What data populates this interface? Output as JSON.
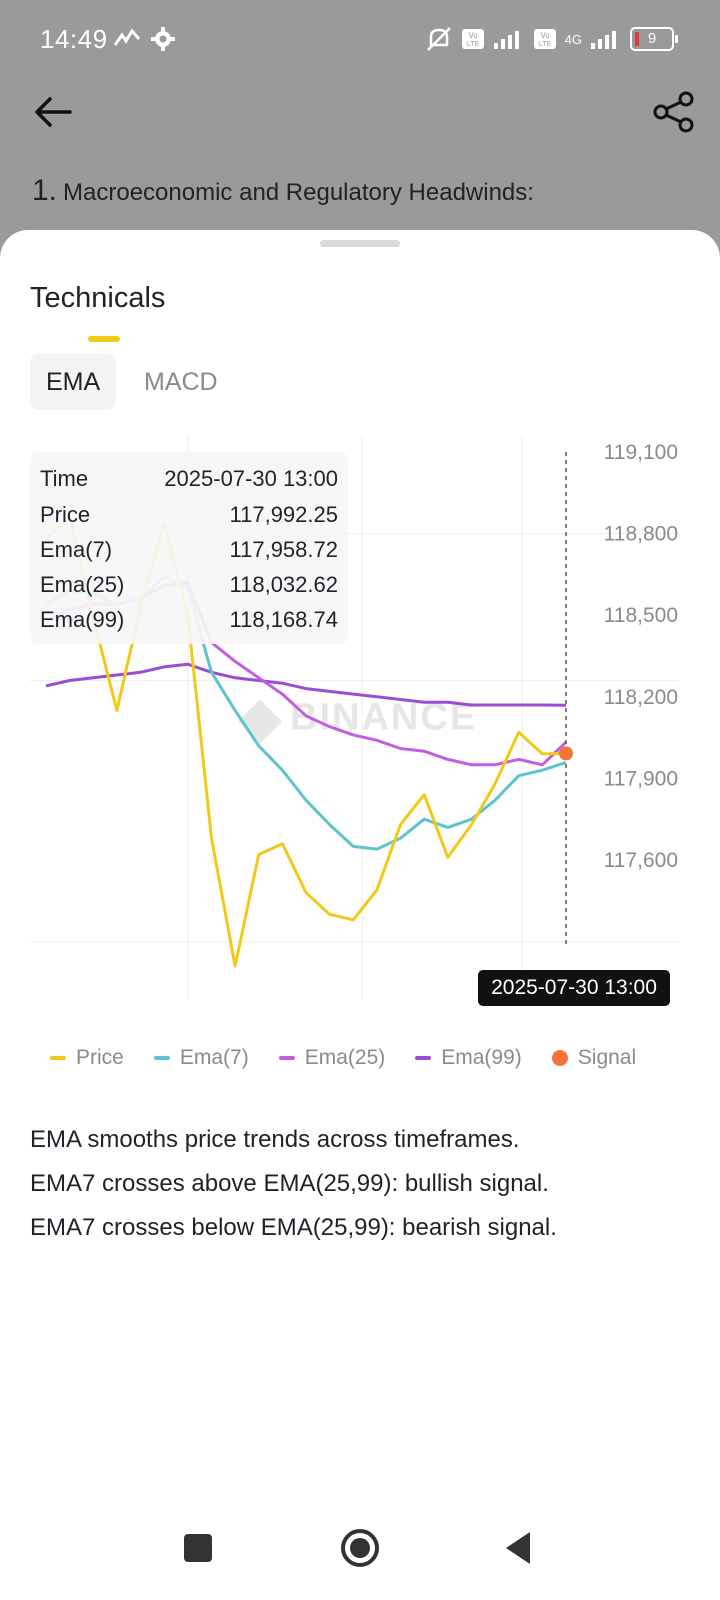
{
  "status_bar": {
    "time": "14:49",
    "battery": "9",
    "network": "4G",
    "left_icons": [
      "gesture-icon",
      "gear-icon"
    ],
    "right_icons": [
      "mute-icon",
      "volte-icon",
      "signal-icon",
      "volte-icon",
      "signal-icon",
      "battery-icon"
    ]
  },
  "header": {
    "back_icon": "arrow-left-icon",
    "share_icon": "share-icon"
  },
  "article": {
    "number": "1.",
    "heading": "Macroeconomic and Regulatory Headwinds:"
  },
  "sheet": {
    "title": "Technicals",
    "tabs": [
      {
        "label": "EMA",
        "active": true
      },
      {
        "label": "MACD",
        "active": false
      }
    ]
  },
  "tooltip": {
    "rows": [
      {
        "label": "Time",
        "value": "2025-07-30 13:00"
      },
      {
        "label": "Price",
        "value": "117,992.25"
      },
      {
        "label": "Ema(7)",
        "value": "117,958.72"
      },
      {
        "label": "Ema(25)",
        "value": "118,032.62"
      },
      {
        "label": "Ema(99)",
        "value": "118,168.74"
      }
    ]
  },
  "chart_data": {
    "type": "line",
    "watermark": "BINANCE",
    "x_label": "2025-07-30 13:00",
    "y_ticks": [
      "119,100",
      "118,800",
      "118,500",
      "118,200",
      "117,900",
      "117,600"
    ],
    "y_tick_values": [
      119100,
      118800,
      118500,
      118200,
      117900,
      117600
    ],
    "ylim": [
      117300,
      119100
    ],
    "series": [
      {
        "name": "Price",
        "color": "#f0c919",
        "values": [
          118780,
          118860,
          118490,
          118150,
          118530,
          118840,
          118500,
          117680,
          117210,
          117620,
          117660,
          117480,
          117400,
          117380,
          117490,
          117730,
          117840,
          117610,
          117730,
          117880,
          118070,
          117990,
          117992
        ]
      },
      {
        "name": "Ema(7)",
        "color": "#5ec3ce",
        "values": [
          118540,
          118590,
          118580,
          118540,
          118560,
          118640,
          118600,
          118290,
          118150,
          118020,
          117930,
          117820,
          117730,
          117650,
          117640,
          117680,
          117750,
          117720,
          117750,
          117820,
          117910,
          117930,
          117959
        ]
      },
      {
        "name": "Ema(25)",
        "color": "#c45ee0",
        "values": [
          118480,
          118520,
          118540,
          118540,
          118560,
          118610,
          118620,
          118400,
          118330,
          118270,
          118210,
          118130,
          118090,
          118060,
          118040,
          118010,
          118000,
          117970,
          117950,
          117950,
          117970,
          117950,
          118033
        ]
      },
      {
        "name": "Ema(99)",
        "color": "#9b4dd6",
        "values": [
          118240,
          118260,
          118270,
          118280,
          118290,
          118310,
          118320,
          118290,
          118270,
          118260,
          118250,
          118230,
          118220,
          118210,
          118200,
          118190,
          118180,
          118180,
          118170,
          118170,
          118170,
          118170,
          118169
        ]
      }
    ],
    "signal": {
      "name": "Signal",
      "color": "#f4733b",
      "index": 22,
      "value": 117992
    }
  },
  "legend": [
    {
      "label": "Price",
      "color": "#f0c919",
      "kind": "line"
    },
    {
      "label": "Ema(7)",
      "color": "#5ec3ce",
      "kind": "line"
    },
    {
      "label": "Ema(25)",
      "color": "#c45ee0",
      "kind": "line"
    },
    {
      "label": "Ema(99)",
      "color": "#9b4dd6",
      "kind": "line"
    },
    {
      "label": "Signal",
      "color": "#f4733b",
      "kind": "dot"
    }
  ],
  "description": {
    "line1": "EMA smooths price trends across timeframes.",
    "line2": "EMA7 crosses above EMA(25,99): bullish signal.",
    "line3": "EMA7 crosses below EMA(25,99): bearish signal."
  },
  "nav": {
    "recent_icon": "square-icon",
    "home_icon": "circle-icon",
    "back_icon": "triangle-back-icon"
  }
}
